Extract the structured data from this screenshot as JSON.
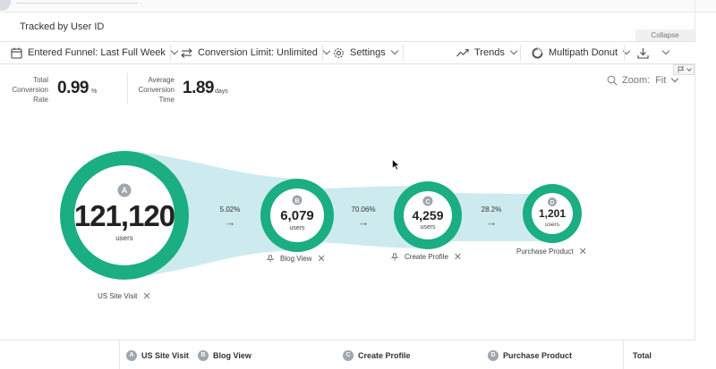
{
  "header": {
    "tracked_label": "Tracked by User ID",
    "collapse_label": "Collapse"
  },
  "toolbar": {
    "entered_funnel": "Entered Funnel: Last Full Week",
    "conversion_limit": "Conversion Limit: Unlimited",
    "settings": "Settings",
    "trends": "Trends",
    "view_mode": "Multipath Donut"
  },
  "metrics": {
    "total_conversion": {
      "label_line1": "Total",
      "label_line2": "Conversion",
      "label_line3": "Rate",
      "value": "0.99",
      "unit": "%"
    },
    "average_conversion": {
      "label_line1": "Average",
      "label_line2": "Conversion",
      "label_line3": "Time",
      "value": "1.89",
      "unit": "days"
    }
  },
  "zoom": {
    "label": "Zoom:",
    "value": "Fit"
  },
  "funnel": {
    "accent_color": "#1aae82",
    "flow_color": "#cdebee",
    "steps": [
      {
        "letter": "A",
        "name": "US Site Visit",
        "count": "121,120",
        "unit": "users"
      },
      {
        "letter": "B",
        "name": "Blog View",
        "count": "6,079",
        "unit": "users"
      },
      {
        "letter": "C",
        "name": "Create Profile",
        "count": "4,259",
        "unit": "users"
      },
      {
        "letter": "D",
        "name": "Purchase Product",
        "count": "1,201",
        "unit": "users"
      }
    ],
    "conversions": [
      "5.02%",
      "70.06%",
      "28.2%"
    ]
  },
  "table": {
    "headers": [
      {
        "letter": "A",
        "name": "US Site Visit"
      },
      {
        "letter": "B",
        "name": "Blog View"
      },
      {
        "letter": "C",
        "name": "Create Profile"
      },
      {
        "letter": "D",
        "name": "Purchase Product"
      }
    ],
    "total_label": "Total"
  }
}
